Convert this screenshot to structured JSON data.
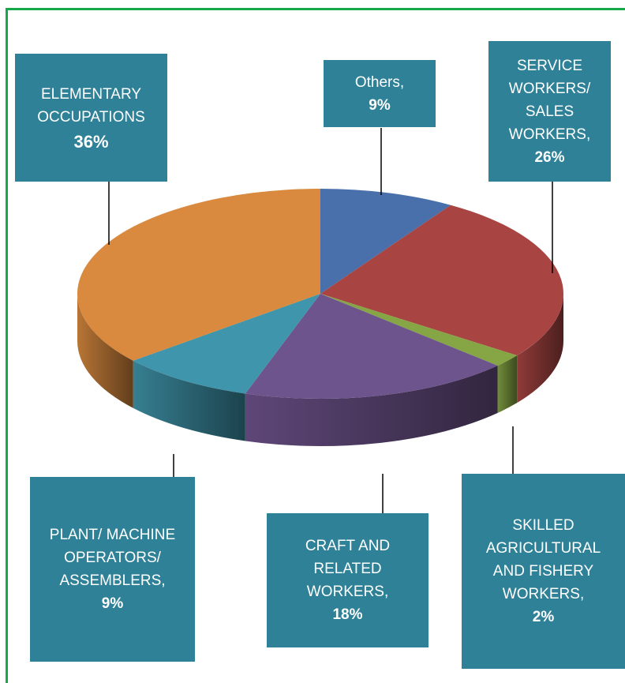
{
  "chart_data": {
    "type": "pie",
    "variant": "3d",
    "frame_color": "#16a84a",
    "label_box_color": "#2e8197",
    "slices": [
      {
        "label": "Others,",
        "value": 9,
        "value_label": "9%",
        "color": "#4a70ab"
      },
      {
        "label": "SERVICE\nWORKERS/\nSALES\nWORKERS,",
        "value": 26,
        "value_label": "26%",
        "color": "#a84542"
      },
      {
        "label": "SKILLED\nAGRICULTURAL\nAND FISHERY\nWORKERS,",
        "value": 2,
        "value_label": "2%",
        "color": "#86a544"
      },
      {
        "label": "CRAFT AND\nRELATED\nWORKERS,",
        "value": 18,
        "value_label": "18%",
        "color": "#6e548d"
      },
      {
        "label": "PLANT/ MACHINE\nOPERATORS/\nASSEMBLERS,",
        "value": 9,
        "value_label": "9%",
        "color": "#3f95ab"
      },
      {
        "label": "ELEMENTARY\nOCCUPATIONS",
        "value": 36,
        "value_label": "36%",
        "color": "#d98a3e"
      }
    ]
  }
}
